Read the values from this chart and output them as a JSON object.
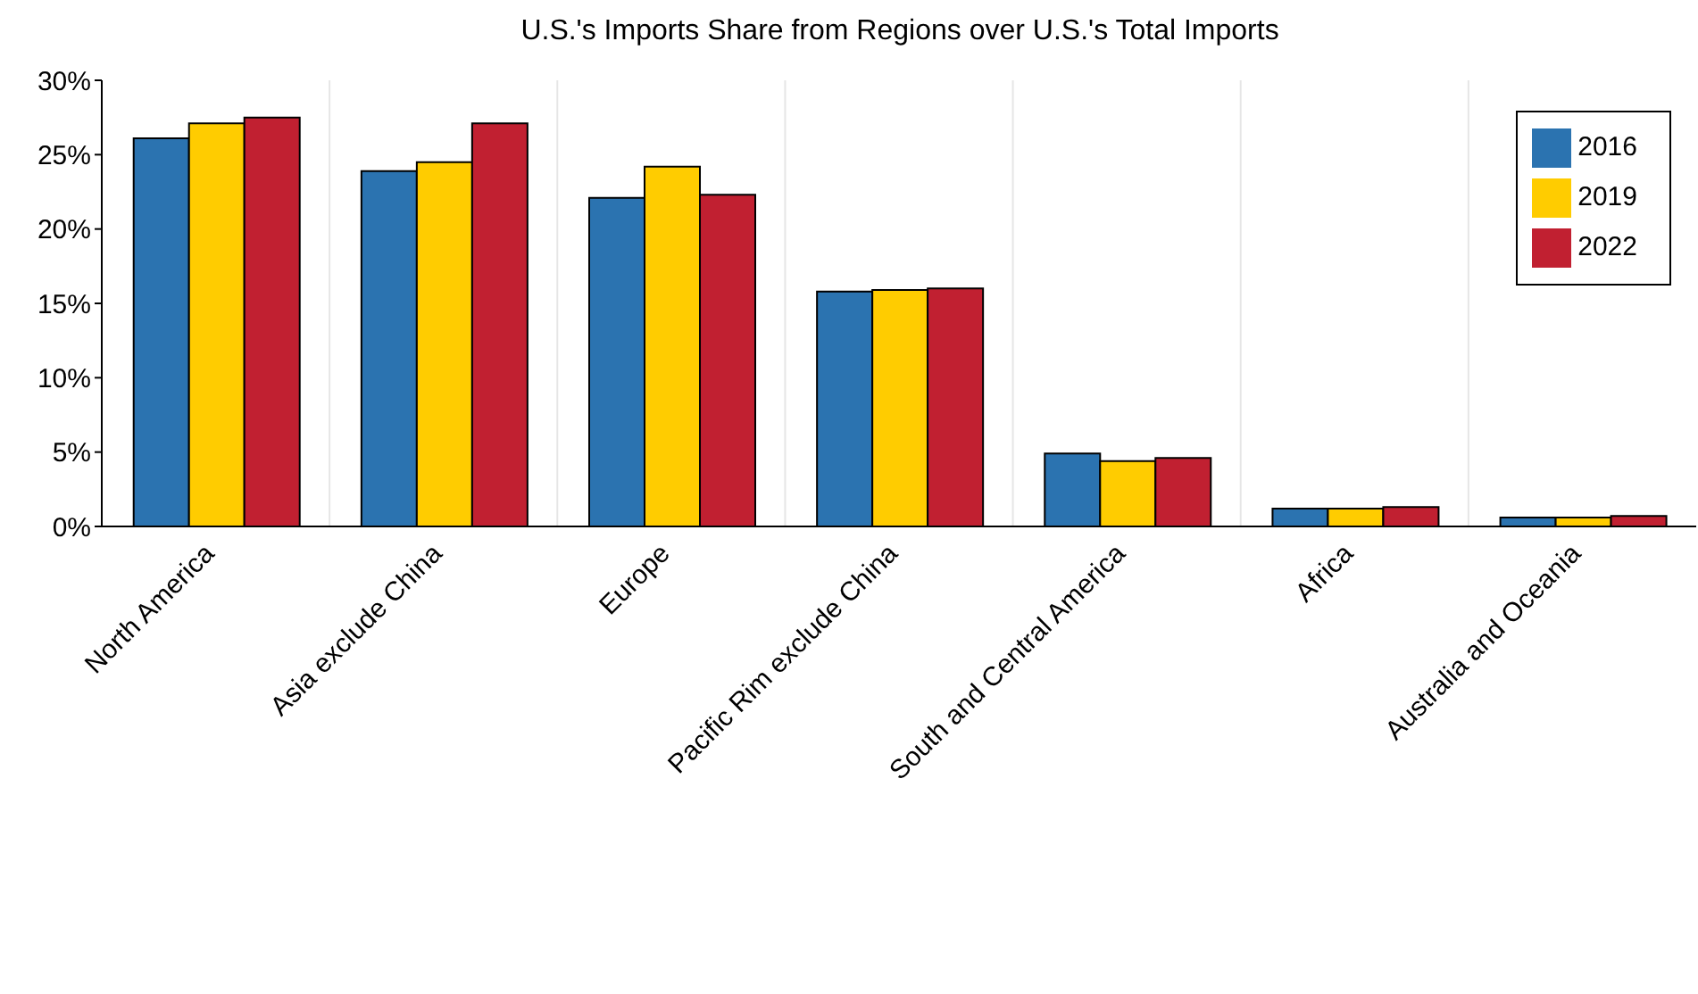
{
  "chart_data": {
    "type": "bar",
    "title": "U.S.'s Imports Share from Regions over U.S.'s Total Imports",
    "categories": [
      "North America",
      "Asia exclude China",
      "Europe",
      "Pacific Rim exclude China",
      "South and Central America",
      "Africa",
      "Australia and Oceania"
    ],
    "series": [
      {
        "name": "2016",
        "color": "#2b73b0",
        "values": [
          26.1,
          23.9,
          22.1,
          15.8,
          4.9,
          1.2,
          0.6
        ]
      },
      {
        "name": "2019",
        "color": "#ffcc00",
        "values": [
          27.1,
          24.5,
          24.2,
          15.9,
          4.4,
          1.2,
          0.6
        ]
      },
      {
        "name": "2022",
        "color": "#c12031",
        "values": [
          27.5,
          27.1,
          22.3,
          16.0,
          4.6,
          1.3,
          0.7
        ]
      }
    ],
    "ylim": [
      0,
      30
    ],
    "yticks": [
      {
        "value": 0,
        "label": "0%"
      },
      {
        "value": 5,
        "label": "5%"
      },
      {
        "value": 10,
        "label": "10%"
      },
      {
        "value": 15,
        "label": "15%"
      },
      {
        "value": 20,
        "label": "20%"
      },
      {
        "value": 25,
        "label": "25%"
      },
      {
        "value": 30,
        "label": "30%"
      }
    ],
    "grid": "x",
    "legend": "top right"
  }
}
